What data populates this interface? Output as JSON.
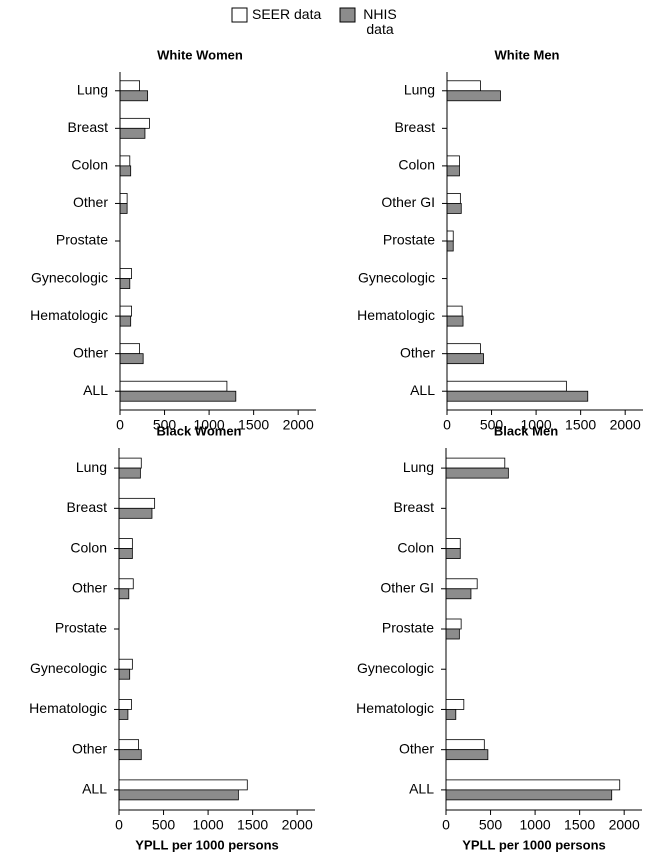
{
  "legend": [
    {
      "name": "SEER data",
      "color": "#ffffff"
    },
    {
      "name": "NHIS data",
      "color": "#8c8c8c"
    }
  ],
  "chart_data": [
    {
      "type": "bar",
      "title": "White Women",
      "categories": [
        "Lung",
        "Breast",
        "Colon",
        "Other",
        "Prostate",
        "Gynecologic",
        "Hematologic",
        "Other",
        "ALL"
      ],
      "series": [
        {
          "values": [
            220,
            330,
            110,
            80,
            null,
            130,
            130,
            220,
            1200
          ]
        },
        {
          "values": [
            310,
            280,
            120,
            80,
            null,
            110,
            120,
            260,
            1300
          ]
        }
      ],
      "xlim": [
        0,
        2200
      ],
      "xticks": [
        0,
        500,
        1000,
        1500,
        2000
      ]
    },
    {
      "type": "bar",
      "title": "White Men",
      "categories": [
        "Lung",
        "Breast",
        "Colon",
        "Other GI",
        "Prostate",
        "Gynecologic",
        "Hematologic",
        "Other",
        "ALL"
      ],
      "series": [
        {
          "values": [
            375,
            null,
            140,
            150,
            70,
            null,
            170,
            375,
            1340
          ]
        },
        {
          "values": [
            600,
            null,
            140,
            160,
            70,
            null,
            180,
            410,
            1580
          ]
        }
      ],
      "xlim": [
        0,
        2200
      ],
      "xticks": [
        0,
        500,
        1000,
        1500,
        2000
      ]
    },
    {
      "type": "bar",
      "title": "Black Women",
      "xlabel": "YPLL per 1000 persons",
      "categories": [
        "Lung",
        "Breast",
        "Colon",
        "Other",
        "Prostate",
        "Gynecologic",
        "Hematologic",
        "Other",
        "ALL"
      ],
      "series": [
        {
          "values": [
            250,
            400,
            150,
            160,
            null,
            150,
            140,
            220,
            1440
          ]
        },
        {
          "values": [
            240,
            370,
            150,
            110,
            null,
            120,
            100,
            250,
            1340
          ]
        }
      ],
      "xlim": [
        0,
        2200
      ],
      "xticks": [
        0,
        500,
        1000,
        1500,
        2000
      ]
    },
    {
      "type": "bar",
      "title": "Black Men",
      "xlabel": "YPLL per 1000 persons",
      "categories": [
        "Lung",
        "Breast",
        "Colon",
        "Other GI",
        "Prostate",
        "Gynecologic",
        "Hematologic",
        "Other",
        "ALL"
      ],
      "series": [
        {
          "values": [
            660,
            null,
            160,
            350,
            170,
            null,
            200,
            430,
            1950
          ]
        },
        {
          "values": [
            700,
            null,
            160,
            280,
            150,
            null,
            110,
            470,
            1860
          ]
        }
      ],
      "xlim": [
        0,
        2200
      ],
      "xticks": [
        0,
        500,
        1000,
        1500,
        2000
      ]
    }
  ]
}
